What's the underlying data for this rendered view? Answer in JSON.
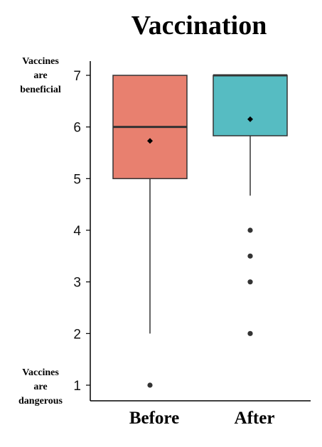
{
  "chart_data": {
    "type": "box",
    "title": "Vaccination",
    "categories": [
      "Before",
      "After"
    ],
    "ylim": [
      1,
      7
    ],
    "yticks": [
      1,
      2,
      3,
      4,
      5,
      6,
      7
    ],
    "grid": false,
    "annotations": {
      "top": [
        "Vaccines",
        "are",
        "beneficial"
      ],
      "bottom": [
        "Vaccines",
        "are",
        "dangerous"
      ]
    },
    "boxes": [
      {
        "category": "Before",
        "color": "#E8806F",
        "whisker_low": 2,
        "q1": 5,
        "median": 6,
        "q3": 7,
        "whisker_high": 7,
        "mean": 5.73,
        "outliers": [
          1
        ]
      },
      {
        "category": "After",
        "color": "#56BCC2",
        "whisker_low": 4.67,
        "q1": 5.83,
        "median": 7,
        "q3": 7,
        "whisker_high": 7,
        "mean": 6.15,
        "outliers": [
          4,
          3.5,
          3,
          2
        ]
      }
    ]
  }
}
